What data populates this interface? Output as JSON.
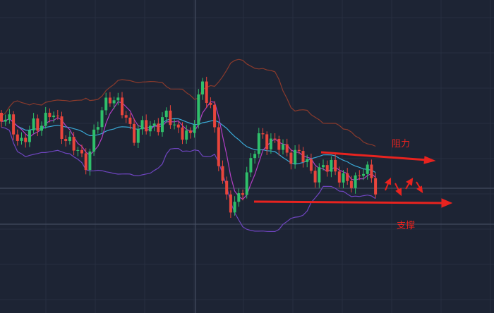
{
  "annotations": {
    "resistance": "阻力",
    "support": "支撑"
  }
}
